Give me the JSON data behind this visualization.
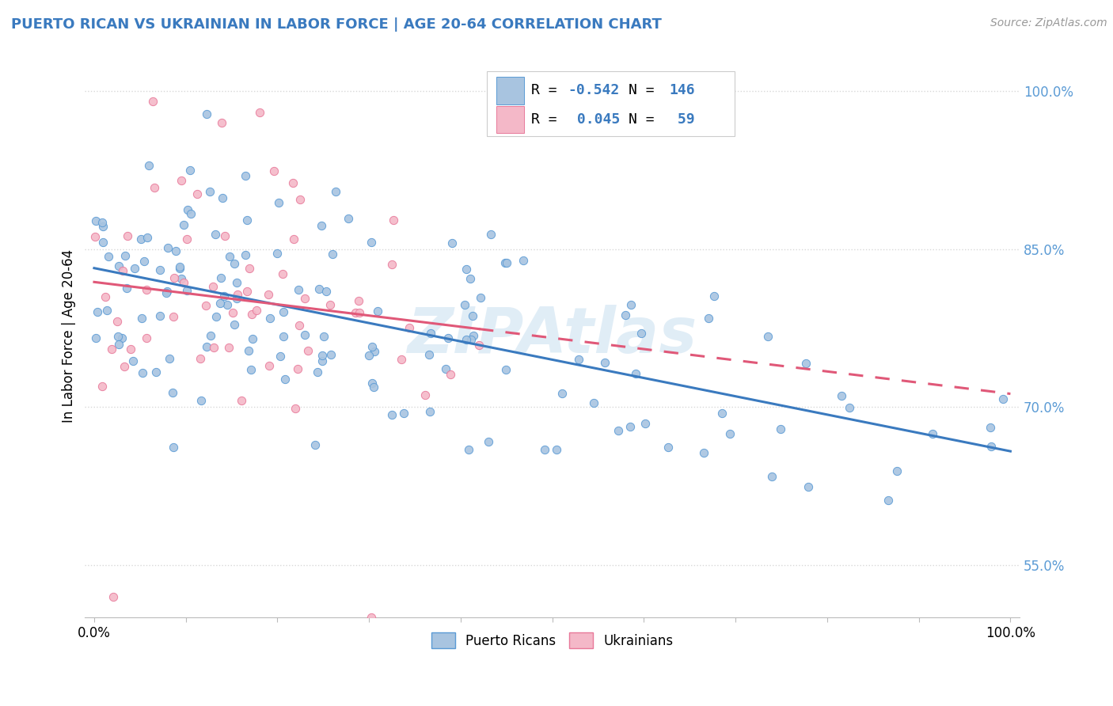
{
  "title": "PUERTO RICAN VS UKRAINIAN IN LABOR FORCE | AGE 20-64 CORRELATION CHART",
  "source": "Source: ZipAtlas.com",
  "ylabel": "In Labor Force | Age 20-64",
  "yticks_labels": [
    "55.0%",
    "70.0%",
    "85.0%",
    "100.0%"
  ],
  "ytick_vals": [
    0.55,
    0.7,
    0.85,
    1.0
  ],
  "xtick_left": "0.0%",
  "xtick_right": "100.0%",
  "blue_scatter_color": "#a8c4e0",
  "blue_edge_color": "#5b9bd5",
  "pink_scatter_color": "#f4b8c8",
  "pink_edge_color": "#e8799a",
  "blue_line_color": "#3a7abf",
  "pink_line_color": "#e05878",
  "watermark_color": "#c8dff0",
  "grid_color": "#d8d8d8",
  "background_color": "#ffffff",
  "title_color": "#3a7abf",
  "source_color": "#999999",
  "legend_text_color": "#1a1a1a",
  "legend_value_color": "#3a7abf",
  "blue_R": "-0.542",
  "blue_N": "146",
  "pink_R": "0.045",
  "pink_N": "59",
  "blue_label": "Puerto Ricans",
  "pink_label": "Ukrainians",
  "xlim": [
    0.0,
    1.0
  ],
  "ylim": [
    0.5,
    1.035
  ]
}
